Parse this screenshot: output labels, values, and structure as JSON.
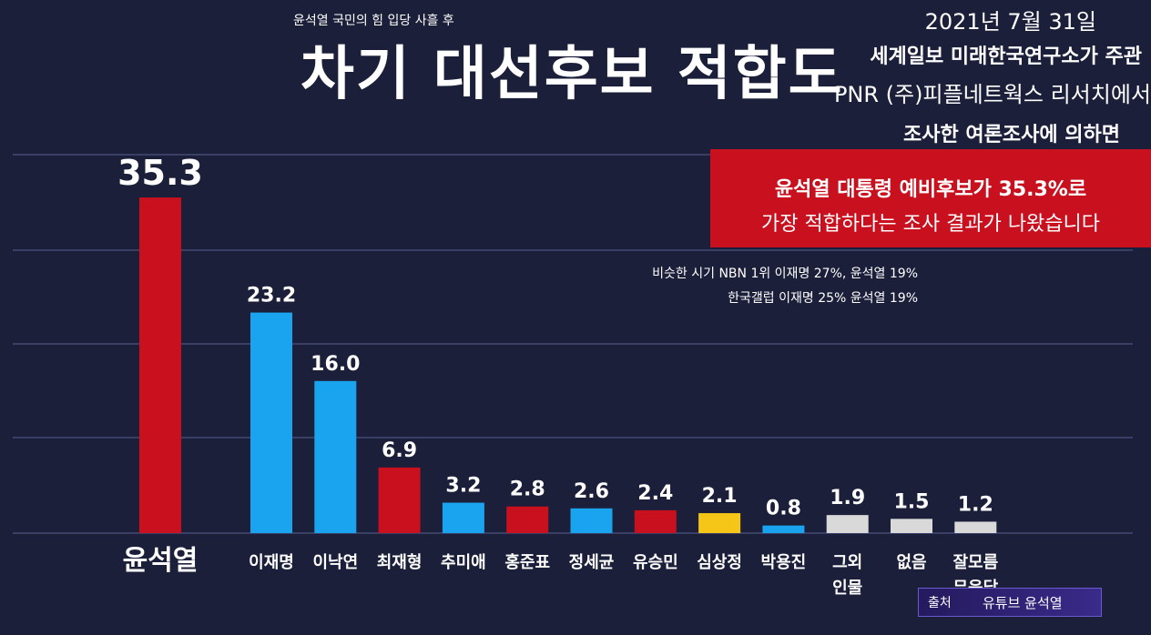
{
  "header": {
    "subtitle": "윤석열 국민의 힘 입당 사흘 후",
    "title": "차기 대선후보 적합도",
    "date": "2021년 7월 31일",
    "info_line1": "세계일보 미래한국연구소가 주관",
    "info_line2": "PNR (주)피플네트웍스 리서치에서",
    "info_line3": "조사한 여론조사에 의하면"
  },
  "highlight_box": {
    "line1": "윤석열 대통령 예비후보가 35.3%로",
    "line2": "가장 적합하다는 조사 결과가 나왔습니다"
  },
  "notes": {
    "line1": "비슷한 시기 NBN 1위 이재명 27%, 윤석열 19%",
    "line2": "한국갤럽  이재명 25%  윤석열 19%"
  },
  "source": {
    "label": "출처",
    "name": "유튜브 윤석열"
  },
  "colors": {
    "background": "#1b1f3a",
    "red": "#c8101e",
    "blue": "#1aa3ee",
    "yellow": "#f5c518",
    "gray": "#d9d9d9"
  },
  "chart_data": {
    "type": "bar",
    "categories": [
      "윤석열",
      "이재명",
      "이낙연",
      "최재형",
      "추미애",
      "홍준표",
      "정세균",
      "유승민",
      "심상정",
      "박용진",
      "그외\n인물",
      "없음",
      "잘모름\n무응답"
    ],
    "values": [
      35.3,
      23.2,
      16.0,
      6.9,
      3.2,
      2.8,
      2.6,
      2.4,
      2.1,
      0.8,
      1.9,
      1.5,
      1.2
    ],
    "value_labels": [
      "35.3",
      "23.2",
      "16.0",
      "6.9",
      "3.2",
      "2.8",
      "2.6",
      "2.4",
      "2.1",
      "0.8",
      "1.9",
      "1.5",
      "1.2"
    ],
    "bar_colors": [
      "red",
      "blue",
      "blue",
      "red",
      "blue",
      "red",
      "blue",
      "red",
      "yellow",
      "blue",
      "gray",
      "gray",
      "gray"
    ],
    "title": "차기 대선후보 적합도",
    "xlabel": "",
    "ylabel": "",
    "grid": true
  }
}
